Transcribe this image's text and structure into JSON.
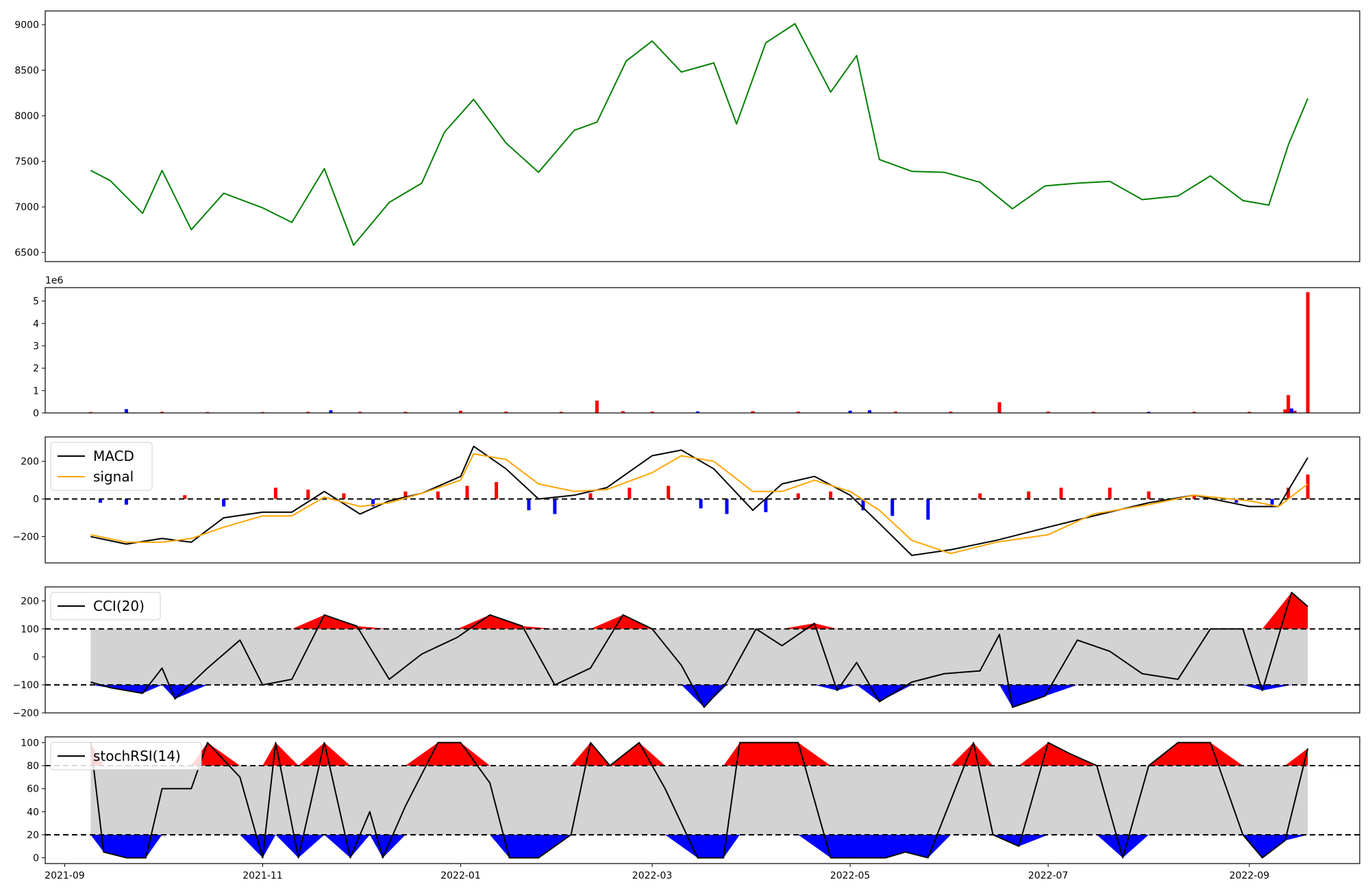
{
  "chart_data": [
    {
      "type": "line",
      "panel": "price",
      "x_dates": [
        "2021-09-09",
        "2021-09-15",
        "2021-09-25",
        "2021-10-01",
        "2021-10-10",
        "2021-10-20",
        "2021-11-01",
        "2021-11-10",
        "2021-11-20",
        "2021-11-29",
        "2021-12-10",
        "2021-12-20",
        "2021-12-27",
        "2022-01-05",
        "2022-01-15",
        "2022-01-25",
        "2022-02-05",
        "2022-02-12",
        "2022-02-21",
        "2022-03-01",
        "2022-03-10",
        "2022-03-20",
        "2022-03-27",
        "2022-04-05",
        "2022-04-14",
        "2022-04-25",
        "2022-05-03",
        "2022-05-10",
        "2022-05-20",
        "2022-05-30",
        "2022-06-10",
        "2022-06-20",
        "2022-06-30",
        "2022-07-10",
        "2022-07-20",
        "2022-07-30",
        "2022-08-10",
        "2022-08-20",
        "2022-08-30",
        "2022-09-07",
        "2022-09-13",
        "2022-09-19"
      ],
      "series": [
        {
          "values": [
            7400,
            7290,
            6930,
            7400,
            6750,
            7150,
            6990,
            6830,
            7420,
            6580,
            7050,
            7260,
            7820,
            8180,
            7700,
            7380,
            7840,
            7930,
            8600,
            8820,
            8480,
            8580,
            7910,
            8800,
            9010,
            8260,
            8660,
            7520,
            7390,
            7380,
            7270,
            6980,
            7230,
            7260,
            7280,
            7080,
            7120,
            7340,
            7070,
            7020,
            7680,
            8190
          ],
          "color": "#008000"
        }
      ],
      "ylim": [
        6400,
        9150
      ],
      "yticks": [
        6500,
        7000,
        7500,
        8000,
        8500,
        9000
      ]
    },
    {
      "type": "bar",
      "panel": "volume",
      "exponent_label": "1e6",
      "x_dates": [
        "2021-09-09",
        "2021-09-20",
        "2021-10-01",
        "2021-10-15",
        "2021-11-01",
        "2021-11-15",
        "2021-11-22",
        "2021-12-01",
        "2021-12-15",
        "2022-01-01",
        "2022-01-15",
        "2022-02-01",
        "2022-02-12",
        "2022-02-20",
        "2022-03-01",
        "2022-03-15",
        "2022-04-01",
        "2022-04-15",
        "2022-05-01",
        "2022-05-07",
        "2022-05-15",
        "2022-06-01",
        "2022-06-16",
        "2022-07-01",
        "2022-07-15",
        "2022-08-01",
        "2022-08-15",
        "2022-09-01",
        "2022-09-12",
        "2022-09-13",
        "2022-09-14",
        "2022-09-15",
        "2022-09-19"
      ],
      "values": [
        0.04,
        0.17,
        0.05,
        0.04,
        0.04,
        0.05,
        0.12,
        0.05,
        0.05,
        0.1,
        0.06,
        0.05,
        0.55,
        0.08,
        0.06,
        0.07,
        0.08,
        0.06,
        0.1,
        0.12,
        0.06,
        0.06,
        0.48,
        0.06,
        0.05,
        0.05,
        0.05,
        0.05,
        0.16,
        0.8,
        0.2,
        0.1,
        5.4
      ],
      "bar_colors": [
        "red",
        "blue",
        "red",
        "red",
        "red",
        "red",
        "blue",
        "red",
        "red",
        "red",
        "red",
        "red",
        "red",
        "red",
        "red",
        "blue",
        "red",
        "red",
        "blue",
        "blue",
        "red",
        "red",
        "red",
        "red",
        "red",
        "blue",
        "red",
        "red",
        "red",
        "red",
        "blue",
        "red",
        "red"
      ],
      "ylim": [
        0,
        5.6
      ],
      "yticks": [
        0,
        1,
        2,
        3,
        4,
        5
      ]
    },
    {
      "type": "line",
      "panel": "macd",
      "x_dates": [
        "2021-09-09",
        "2021-09-20",
        "2021-10-01",
        "2021-10-10",
        "2021-10-20",
        "2021-11-01",
        "2021-11-10",
        "2021-11-20",
        "2021-12-01",
        "2021-12-10",
        "2021-12-20",
        "2022-01-01",
        "2022-01-05",
        "2022-01-15",
        "2022-01-25",
        "2022-02-05",
        "2022-02-15",
        "2022-03-01",
        "2022-03-10",
        "2022-03-20",
        "2022-04-01",
        "2022-04-10",
        "2022-04-20",
        "2022-05-01",
        "2022-05-10",
        "2022-05-20",
        "2022-06-01",
        "2022-06-15",
        "2022-07-01",
        "2022-07-15",
        "2022-08-01",
        "2022-08-15",
        "2022-09-01",
        "2022-09-10",
        "2022-09-19"
      ],
      "series": [
        {
          "name": "MACD",
          "color": "#000000",
          "values": [
            -200,
            -240,
            -210,
            -230,
            -100,
            -70,
            -70,
            40,
            -80,
            -10,
            30,
            120,
            280,
            160,
            0,
            20,
            60,
            230,
            260,
            160,
            -60,
            80,
            120,
            20,
            -130,
            -300,
            -270,
            -220,
            -150,
            -90,
            -20,
            20,
            -40,
            -40,
            220
          ]
        },
        {
          "name": "signal",
          "color": "#ffa500",
          "values": [
            -190,
            -230,
            -230,
            -210,
            -150,
            -90,
            -90,
            10,
            -40,
            -20,
            30,
            100,
            240,
            210,
            80,
            40,
            50,
            140,
            230,
            200,
            40,
            40,
            100,
            40,
            -60,
            -220,
            -290,
            -230,
            -190,
            -80,
            -30,
            20,
            -10,
            -40,
            80
          ]
        }
      ],
      "hist": {
        "x_dates": [
          "2021-09-12",
          "2021-09-20",
          "2021-10-08",
          "2021-10-20",
          "2021-11-05",
          "2021-11-15",
          "2021-11-26",
          "2021-12-05",
          "2021-12-15",
          "2021-12-25",
          "2022-01-03",
          "2022-01-12",
          "2022-01-22",
          "2022-01-30",
          "2022-02-10",
          "2022-02-22",
          "2022-03-06",
          "2022-03-16",
          "2022-03-24",
          "2022-04-05",
          "2022-04-15",
          "2022-04-25",
          "2022-05-05",
          "2022-05-14",
          "2022-05-25",
          "2022-06-10",
          "2022-06-25",
          "2022-07-05",
          "2022-07-20",
          "2022-08-01",
          "2022-08-15",
          "2022-08-28",
          "2022-09-08",
          "2022-09-13",
          "2022-09-19"
        ],
        "values": [
          -20,
          -30,
          20,
          -40,
          60,
          50,
          30,
          -40,
          40,
          40,
          70,
          90,
          -60,
          -80,
          30,
          60,
          70,
          -50,
          -80,
          -70,
          30,
          40,
          -60,
          -90,
          -110,
          30,
          40,
          60,
          60,
          40,
          20,
          -20,
          -30,
          60,
          130
        ]
      },
      "legend": [
        "MACD",
        "signal"
      ],
      "ylim": [
        -340,
        330
      ],
      "yticks": [
        -200,
        0,
        200
      ],
      "hlines": [
        0
      ]
    },
    {
      "type": "line",
      "panel": "cci",
      "x_dates": [
        "2021-09-09",
        "2021-09-15",
        "2021-09-25",
        "2021-10-01",
        "2021-10-05",
        "2021-10-15",
        "2021-10-25",
        "2021-11-01",
        "2021-11-10",
        "2021-11-20",
        "2021-11-30",
        "2021-12-10",
        "2021-12-20",
        "2021-12-31",
        "2022-01-10",
        "2022-01-20",
        "2022-01-30",
        "2022-02-10",
        "2022-02-20",
        "2022-03-01",
        "2022-03-10",
        "2022-03-17",
        "2022-03-24",
        "2022-04-02",
        "2022-04-10",
        "2022-04-20",
        "2022-04-27",
        "2022-05-03",
        "2022-05-10",
        "2022-05-20",
        "2022-05-30",
        "2022-06-10",
        "2022-06-16",
        "2022-06-20",
        "2022-06-30",
        "2022-07-10",
        "2022-07-20",
        "2022-07-30",
        "2022-08-10",
        "2022-08-20",
        "2022-08-30",
        "2022-09-05",
        "2022-09-14",
        "2022-09-19"
      ],
      "series": [
        {
          "name": "CCI(20)",
          "color": "#000000",
          "values": [
            -90,
            -110,
            -130,
            -40,
            -150,
            -40,
            60,
            -100,
            -80,
            150,
            110,
            -80,
            10,
            70,
            150,
            110,
            -100,
            -40,
            150,
            100,
            -30,
            -180,
            -90,
            100,
            40,
            120,
            -120,
            -20,
            -160,
            -90,
            -60,
            -50,
            80,
            -180,
            -140,
            60,
            20,
            -60,
            -80,
            100,
            100,
            -120,
            230,
            180
          ]
        }
      ],
      "legend": [
        "CCI(20)"
      ],
      "ylim": [
        -200,
        250
      ],
      "yticks": [
        -200,
        -100,
        0,
        100,
        200
      ],
      "hlines": [
        100,
        -100
      ],
      "band": [
        -100,
        100
      ]
    },
    {
      "type": "line",
      "panel": "stochrsi",
      "x_dates": [
        "2021-09-09",
        "2021-09-13",
        "2021-09-20",
        "2021-09-26",
        "2021-10-01",
        "2021-10-10",
        "2021-10-15",
        "2021-10-25",
        "2021-11-01",
        "2021-11-05",
        "2021-11-12",
        "2021-11-20",
        "2021-11-28",
        "2021-12-04",
        "2021-12-08",
        "2021-12-15",
        "2021-12-25",
        "2022-01-01",
        "2022-01-10",
        "2022-01-16",
        "2022-01-25",
        "2022-02-04",
        "2022-02-10",
        "2022-02-16",
        "2022-02-25",
        "2022-03-05",
        "2022-03-15",
        "2022-03-23",
        "2022-03-28",
        "2022-04-05",
        "2022-04-15",
        "2022-04-25",
        "2022-05-05",
        "2022-05-12",
        "2022-05-18",
        "2022-05-25",
        "2022-06-01",
        "2022-06-08",
        "2022-06-14",
        "2022-06-22",
        "2022-07-01",
        "2022-07-08",
        "2022-07-16",
        "2022-07-24",
        "2022-08-01",
        "2022-08-10",
        "2022-08-20",
        "2022-08-30",
        "2022-09-05",
        "2022-09-12",
        "2022-09-19"
      ],
      "series": [
        {
          "name": "stochRSI(14)",
          "color": "#000000",
          "values": [
            100,
            5,
            0,
            0,
            60,
            60,
            100,
            70,
            0,
            100,
            0,
            100,
            0,
            40,
            0,
            45,
            100,
            100,
            65,
            0,
            0,
            20,
            100,
            80,
            100,
            60,
            0,
            0,
            100,
            100,
            100,
            0,
            0,
            0,
            5,
            0,
            50,
            100,
            20,
            10,
            100,
            90,
            80,
            0,
            80,
            100,
            100,
            20,
            0,
            15,
            95
          ]
        }
      ],
      "legend": [
        "stochRSI(14)"
      ],
      "ylim": [
        -5,
        105
      ],
      "yticks": [
        0,
        20,
        40,
        60,
        80,
        100
      ],
      "hlines": [
        80,
        20
      ],
      "band": [
        20,
        80
      ]
    }
  ],
  "x_axis": {
    "ticks": [
      "2021-09",
      "2021-11",
      "2022-01",
      "2022-03",
      "2022-05",
      "2022-07",
      "2022-09"
    ],
    "xlim": [
      "2021-08-26",
      "2022-10-05"
    ]
  }
}
